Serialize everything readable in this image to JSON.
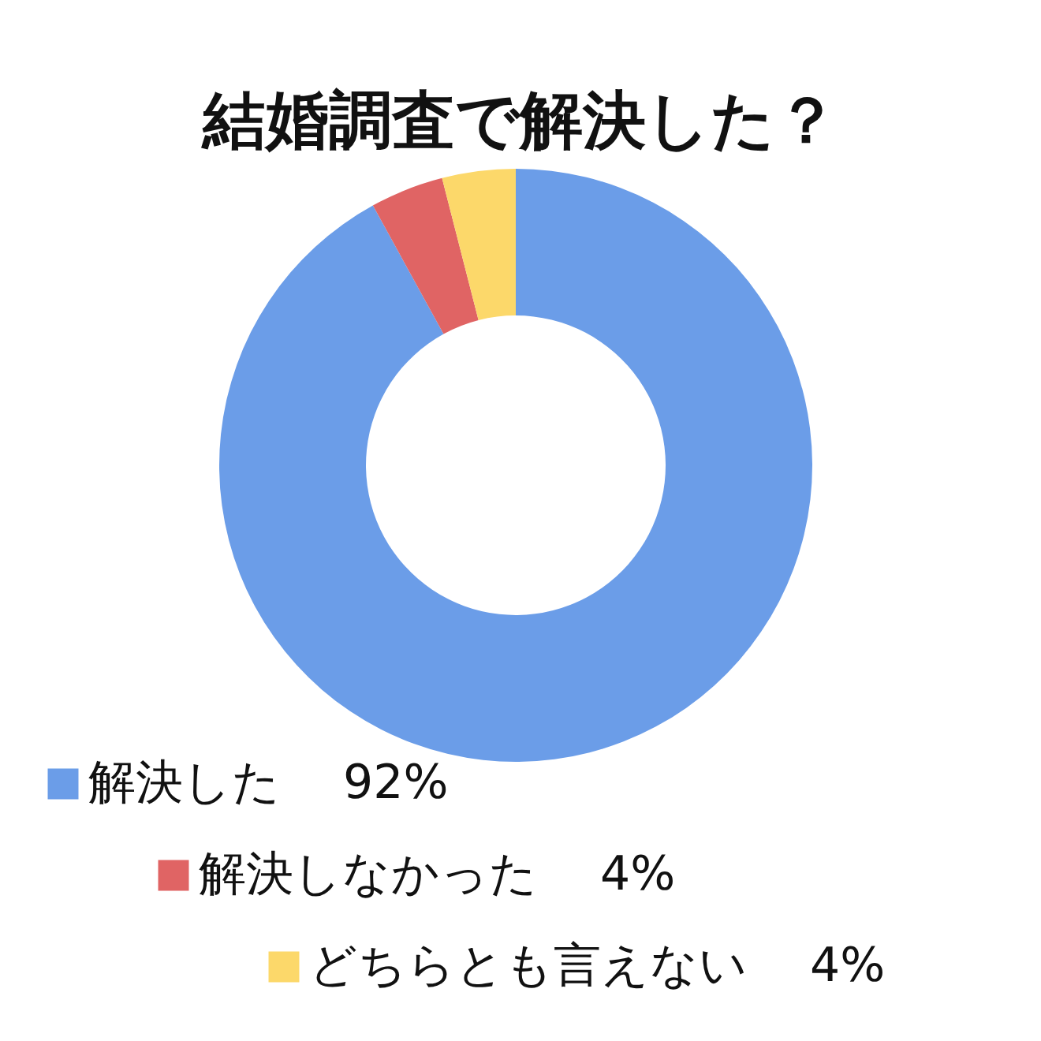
{
  "chart_data": {
    "type": "donut",
    "title": "結婚調査で解決した？",
    "categories": [
      "解決した",
      "解決しなかった",
      "どちらとも言えない"
    ],
    "values": [
      92,
      4,
      4
    ],
    "value_labels": [
      "92%",
      "4%",
      "4%"
    ],
    "colors": [
      "#6b9de8",
      "#e06464",
      "#fcd86a"
    ],
    "legend": "bottom"
  }
}
